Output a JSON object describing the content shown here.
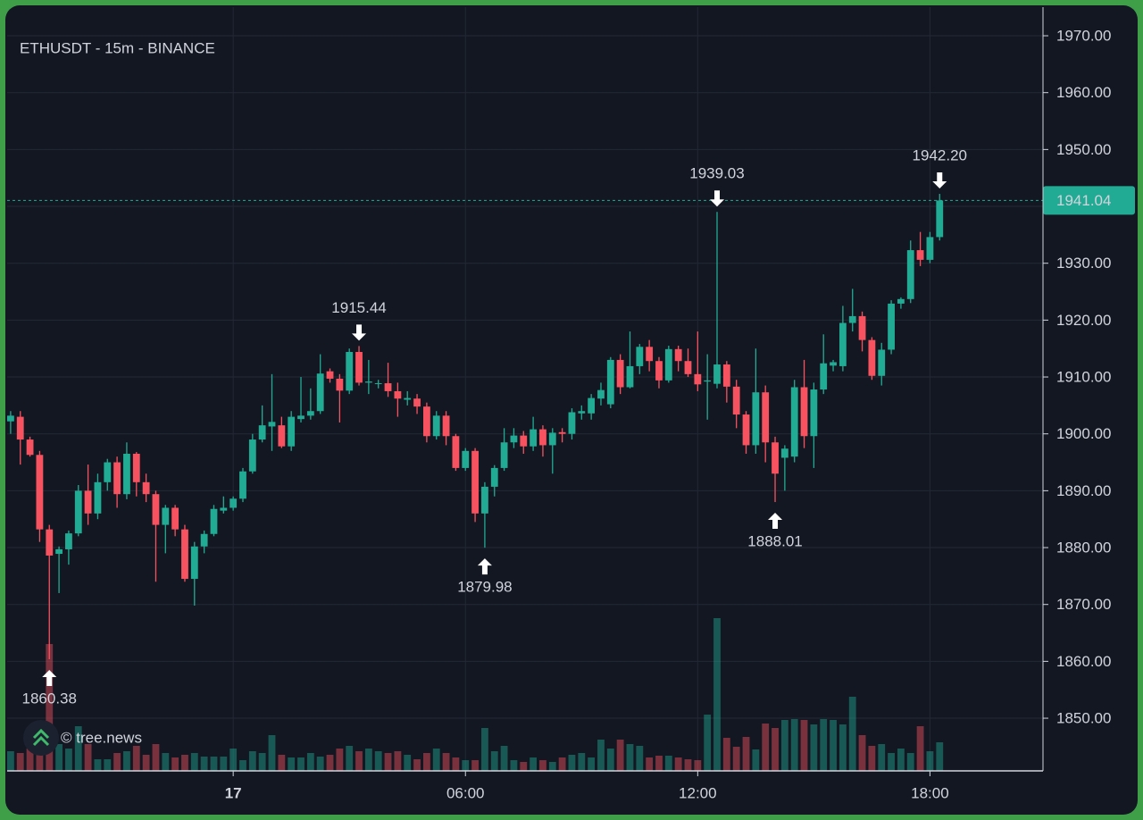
{
  "chart_data": {
    "type": "candlestick",
    "title": "ETHUSDT - 15m - BINANCE",
    "watermark": "© tree.news",
    "x": [
      -5.75,
      -5.5,
      -5.25,
      -5,
      -4.75,
      -4.5,
      -4.25,
      -4,
      -3.75,
      -3.5,
      -3.25,
      -3,
      -2.75,
      -2.5,
      -2.25,
      -2,
      -1.75,
      -1.5,
      -1.25,
      -1,
      -0.75,
      -0.5,
      -0.25,
      0,
      0.25,
      0.5,
      0.75,
      1,
      1.25,
      1.5,
      1.75,
      2,
      2.25,
      2.5,
      2.75,
      3,
      3.25,
      3.5,
      3.75,
      4,
      4.25,
      4.5,
      4.75,
      5,
      5.25,
      5.5,
      5.75,
      6,
      6.25,
      6.5,
      6.75,
      7,
      7.25,
      7.5,
      7.75,
      8,
      8.25,
      8.5,
      8.75,
      9,
      9.25,
      9.5,
      9.75,
      10,
      10.25,
      10.5,
      10.75,
      11,
      11.25,
      11.5,
      11.75,
      12,
      12.25,
      12.5,
      12.75,
      13,
      13.25,
      13.5,
      13.75,
      14,
      14.25,
      14.5,
      14.75,
      15,
      15.25,
      15.5,
      15.75,
      16,
      16.25,
      16.5,
      16.75,
      17,
      17.25,
      17.5,
      17.75,
      18,
      18.25
    ],
    "open": [
      1902.2,
      1903.0,
      1899.0,
      1896.3,
      1883.2,
      1878.9,
      1879.7,
      1882.5,
      1890.0,
      1886.0,
      1891.5,
      1895.0,
      1889.4,
      1896.5,
      1891.5,
      1889.4,
      1884.0,
      1887.0,
      1883.2,
      1874.5,
      1880.2,
      1882.4,
      1886.5,
      1887.0,
      1888.6,
      1893.4,
      1899.0,
      1901.3,
      1901.5,
      1897.8,
      1902.6,
      1903.2,
      1904.0,
      1911.0,
      1909.7,
      1907.6,
      1914.4,
      1909.0,
      1908.8,
      1908.9,
      1907.5,
      1906.0,
      1906.2,
      1904.8,
      1899.6,
      1903.2,
      1899.6,
      1894.0,
      1897.0,
      1886.0,
      1890.7,
      1894.0,
      1898.5,
      1899.7,
      1897.8,
      1900.8,
      1898.0,
      1900.3,
      1900.0,
      1903.6,
      1903.6,
      1906.2,
      1905.2,
      1913.0,
      1908.2,
      1911.9,
      1915.3,
      1912.8,
      1909.4,
      1914.9,
      1912.8,
      1910.5,
      1909.2,
      1908.8,
      1912.2,
      1908.3,
      1903.4,
      1898.0,
      1907.3,
      1898.5,
      1895.8,
      1896.0,
      1908.2,
      1899.6,
      1907.8,
      1912.0,
      1911.9,
      1919.5,
      1920.7,
      1916.5,
      1910.2,
      1914.8,
      1922.9,
      1923.7,
      1932.3,
      1930.6,
      1934.6
    ],
    "high": [
      1904.0,
      1904.0,
      1899.5,
      1897.0,
      1884.0,
      1880.2,
      1883.0,
      1891.0,
      1894.6,
      1893.0,
      1895.6,
      1896.0,
      1898.5,
      1896.8,
      1893.0,
      1890.0,
      1887.5,
      1887.5,
      1884.0,
      1881.0,
      1883.0,
      1887.5,
      1889.0,
      1889.0,
      1894.0,
      1900.0,
      1905.0,
      1910.5,
      1903.0,
      1904.0,
      1910.0,
      1908.0,
      1914.0,
      1911.5,
      1910.5,
      1915.0,
      1915.44,
      1913.0,
      1909.5,
      1912.5,
      1909.0,
      1907.5,
      1907.0,
      1905.5,
      1904.0,
      1904.0,
      1900.0,
      1897.5,
      1897.5,
      1891.5,
      1894.5,
      1901.0,
      1901.0,
      1900.5,
      1903.0,
      1901.5,
      1901.0,
      1901.0,
      1904.5,
      1905.0,
      1907.0,
      1909.0,
      1913.5,
      1914.0,
      1918.0,
      1915.8,
      1916.5,
      1913.5,
      1915.5,
      1915.5,
      1915.0,
      1918.0,
      1914.0,
      1939.03,
      1912.8,
      1909.5,
      1904.0,
      1915.0,
      1908.5,
      1899.5,
      1898.0,
      1909.5,
      1913.0,
      1909.0,
      1917.5,
      1913.0,
      1922.5,
      1925.5,
      1921.5,
      1917.0,
      1916.0,
      1923.5,
      1924.0,
      1934.0,
      1935.5,
      1935.5,
      1942.2
    ],
    "low": [
      1900.0,
      1894.6,
      1896.0,
      1881.0,
      1860.38,
      1872.0,
      1877.0,
      1882.0,
      1884.0,
      1885.0,
      1890.0,
      1887.0,
      1888.5,
      1889.0,
      1888.0,
      1874.0,
      1879.0,
      1882.0,
      1874.0,
      1869.8,
      1879.0,
      1882.0,
      1886.0,
      1886.5,
      1888.0,
      1893.0,
      1898.5,
      1897.0,
      1897.5,
      1897.0,
      1902.0,
      1902.5,
      1903.5,
      1909.0,
      1902.0,
      1907.0,
      1908.5,
      1907.0,
      1908.0,
      1906.5,
      1903.0,
      1905.0,
      1903.5,
      1898.5,
      1899.0,
      1898.0,
      1893.5,
      1893.5,
      1884.5,
      1879.98,
      1889.0,
      1893.5,
      1897.5,
      1896.5,
      1897.0,
      1896.0,
      1893.0,
      1898.5,
      1899.0,
      1902.5,
      1902.5,
      1905.0,
      1904.5,
      1907.0,
      1908.0,
      1910.5,
      1911.0,
      1908.0,
      1909.0,
      1911.0,
      1910.0,
      1907.5,
      1902.5,
      1908.0,
      1905.5,
      1901.0,
      1896.5,
      1896.5,
      1895.0,
      1888.01,
      1890.0,
      1895.0,
      1897.5,
      1894.0,
      1907.0,
      1911.0,
      1911.0,
      1918.0,
      1914.5,
      1909.5,
      1908.5,
      1914.0,
      1922.0,
      1923.0,
      1929.5,
      1930.0,
      1934.0
    ],
    "close": [
      1903.2,
      1899.0,
      1896.3,
      1883.2,
      1878.6,
      1879.7,
      1882.5,
      1890.0,
      1886.0,
      1891.5,
      1895.0,
      1889.4,
      1896.5,
      1891.5,
      1889.4,
      1884.0,
      1887.0,
      1883.2,
      1874.5,
      1880.2,
      1882.4,
      1886.8,
      1887.0,
      1888.6,
      1893.4,
      1899.0,
      1901.5,
      1902.1,
      1897.8,
      1903.0,
      1903.2,
      1904.0,
      1910.6,
      1909.7,
      1907.6,
      1914.4,
      1909.0,
      1909.2,
      1908.9,
      1907.5,
      1906.2,
      1906.3,
      1904.8,
      1899.6,
      1903.2,
      1899.6,
      1894.0,
      1897.0,
      1886.0,
      1890.7,
      1894.0,
      1898.5,
      1899.7,
      1897.8,
      1900.8,
      1898.0,
      1900.2,
      1900.0,
      1903.8,
      1904.0,
      1906.3,
      1907.7,
      1913.0,
      1908.2,
      1911.9,
      1915.3,
      1912.8,
      1909.4,
      1914.9,
      1912.8,
      1910.5,
      1908.7,
      1909.4,
      1912.2,
      1908.3,
      1903.4,
      1898.0,
      1907.3,
      1898.5,
      1893.0,
      1897.4,
      1908.2,
      1899.6,
      1907.8,
      1912.4,
      1912.6,
      1919.5,
      1920.7,
      1916.5,
      1910.2,
      1914.8,
      1922.9,
      1923.7,
      1932.3,
      1930.6,
      1934.6,
      1941.04
    ],
    "volume": [
      22,
      20,
      25,
      22,
      142,
      30,
      25,
      50,
      30,
      13,
      13,
      20,
      22,
      28,
      18,
      30,
      20,
      15,
      18,
      20,
      16,
      16,
      16,
      25,
      12,
      22,
      20,
      40,
      18,
      15,
      15,
      20,
      16,
      18,
      25,
      28,
      22,
      25,
      22,
      20,
      22,
      18,
      13,
      20,
      25,
      20,
      15,
      12,
      12,
      48,
      22,
      28,
      12,
      10,
      15,
      12,
      10,
      15,
      18,
      20,
      15,
      35,
      25,
      35,
      30,
      28,
      15,
      17,
      17,
      15,
      13,
      12,
      63,
      171,
      37,
      27,
      38,
      24,
      53,
      48,
      57,
      58,
      57,
      52,
      58,
      57,
      52,
      83,
      40,
      28,
      30,
      20,
      25,
      20,
      50,
      22,
      32
    ],
    "up_color": "#22ab94",
    "down_color": "#f7525f",
    "xlim": [
      -5.84,
      20.92
    ],
    "ylim": [
      1840.74,
      1975.03
    ],
    "xticks": [
      {
        "value": 0,
        "label": "17"
      },
      {
        "value": 6,
        "label": "06:00"
      },
      {
        "value": 12,
        "label": "12:00"
      },
      {
        "value": 18,
        "label": "18:00"
      }
    ],
    "yticks": [
      {
        "value": 1850,
        "label": "1850.00"
      },
      {
        "value": 1860,
        "label": "1860.00"
      },
      {
        "value": 1870,
        "label": "1870.00"
      },
      {
        "value": 1880,
        "label": "1880.00"
      },
      {
        "value": 1890,
        "label": "1890.00"
      },
      {
        "value": 1900,
        "label": "1900.00"
      },
      {
        "value": 1910,
        "label": "1910.00"
      },
      {
        "value": 1920,
        "label": "1920.00"
      },
      {
        "value": 1930,
        "label": "1930.00"
      },
      {
        "value": 1940,
        "label": "1940.00"
      },
      {
        "value": 1950,
        "label": "1950.00"
      },
      {
        "value": 1960,
        "label": "1960.00"
      },
      {
        "value": 1970,
        "label": "1970.00"
      }
    ],
    "grid": true,
    "price_line": {
      "value": 1941.04,
      "label": "1941.04"
    },
    "annotations": [
      {
        "x": -4.75,
        "value": 1860.38,
        "label": "1860.38",
        "position": "below"
      },
      {
        "x": 3.25,
        "value": 1915.44,
        "label": "1915.44",
        "position": "above"
      },
      {
        "x": 6.5,
        "value": 1879.98,
        "label": "1879.98",
        "position": "below"
      },
      {
        "x": 12.5,
        "value": 1939.03,
        "label": "1939.03",
        "position": "above"
      },
      {
        "x": 14,
        "value": 1888.01,
        "label": "1888.01",
        "position": "below"
      },
      {
        "x": 18.25,
        "value": 1942.2,
        "label": "1942.20",
        "position": "above"
      }
    ]
  }
}
